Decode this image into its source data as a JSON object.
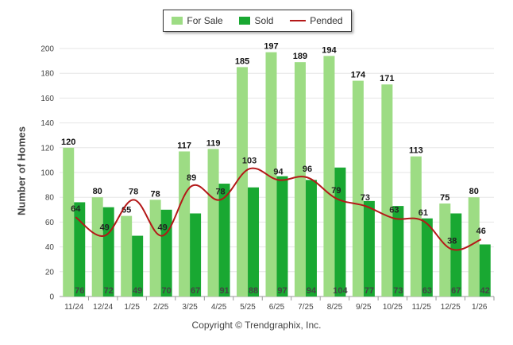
{
  "chart_data": {
    "type": "bar",
    "categories": [
      "11/24",
      "12/24",
      "1/25",
      "2/25",
      "3/25",
      "4/25",
      "5/25",
      "6/25",
      "7/25",
      "8/25",
      "9/25",
      "10/25",
      "11/25",
      "12/25",
      "1/26"
    ],
    "series": [
      {
        "name": "For Sale",
        "type": "bar",
        "color": "#9ddc84",
        "values": [
          120,
          80,
          65,
          78,
          117,
          119,
          185,
          197,
          189,
          194,
          174,
          171,
          113,
          75,
          80
        ]
      },
      {
        "name": "Sold",
        "type": "bar",
        "color": "#19a832",
        "values": [
          76,
          72,
          49,
          70,
          67,
          91,
          88,
          97,
          94,
          104,
          77,
          73,
          63,
          67,
          42
        ]
      },
      {
        "name": "Pended",
        "type": "line",
        "color": "#b41818",
        "values": [
          64,
          49,
          78,
          49,
          89,
          78,
          103,
          94,
          96,
          79,
          73,
          63,
          61,
          38,
          46
        ]
      }
    ],
    "ylabel": "Number of Homes",
    "ylim": [
      0,
      200
    ],
    "yticks": [
      0,
      20,
      40,
      60,
      80,
      100,
      120,
      140,
      160,
      180,
      200
    ],
    "grid": true,
    "legend": "top-center"
  },
  "footer": {
    "copyright": "Copyright © Trendgraphix, Inc."
  }
}
